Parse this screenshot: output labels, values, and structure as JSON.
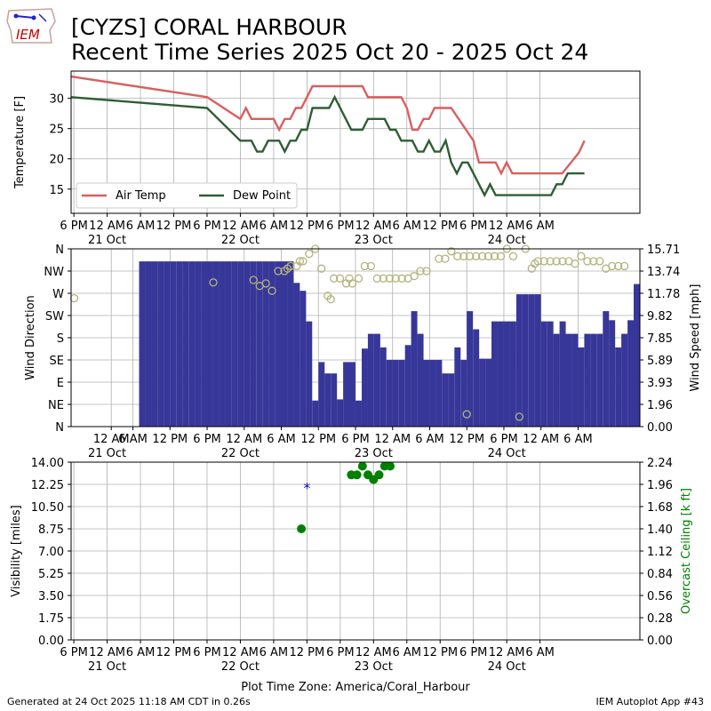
{
  "header": {
    "title_line1": "[CYZS] CORAL HARBOUR",
    "title_line2": "Recent Time Series 2025 Oct 20 - 2025 Oct 24",
    "logo_text": "IEM"
  },
  "footer": {
    "left": "Generated at 24 Oct 2025 11:18 AM CDT in 0.26s",
    "right": "IEM Autoplot App #43"
  },
  "xaxis": {
    "label": "Plot Time Zone: America/Coral_Harbour",
    "range_hours": [
      -6.5,
      96
    ],
    "date_labels": [
      {
        "hour": 0,
        "text": "21 Oct"
      },
      {
        "hour": 24,
        "text": "22 Oct"
      },
      {
        "hour": 48,
        "text": "23 Oct"
      },
      {
        "hour": 72,
        "text": "24 Oct"
      }
    ],
    "ticks_standard": [
      {
        "hour": -6,
        "text": "6 PM"
      },
      {
        "hour": 0,
        "text": "12 AM"
      },
      {
        "hour": 6,
        "text": "6 AM"
      },
      {
        "hour": 12,
        "text": "12 PM"
      },
      {
        "hour": 18,
        "text": "6 PM"
      },
      {
        "hour": 24,
        "text": "12 AM"
      },
      {
        "hour": 30,
        "text": "6 AM"
      },
      {
        "hour": 36,
        "text": "12 PM"
      },
      {
        "hour": 42,
        "text": "6 PM"
      },
      {
        "hour": 48,
        "text": "12 AM"
      },
      {
        "hour": 54,
        "text": "6 AM"
      },
      {
        "hour": 60,
        "text": "12 PM"
      },
      {
        "hour": 66,
        "text": "6 PM"
      },
      {
        "hour": 72,
        "text": "12 AM"
      },
      {
        "hour": 78,
        "text": "6 AM"
      }
    ],
    "ticks_wind": [
      {
        "hour": 0,
        "text": "12 AM"
      },
      {
        "hour": 3.5,
        "text": "6 AM"
      },
      {
        "hour": 9.5,
        "text": "12 PM"
      },
      {
        "hour": 15.5,
        "text": "6 PM"
      },
      {
        "hour": 21.5,
        "text": "12 AM"
      },
      {
        "hour": 27.5,
        "text": "6 AM"
      },
      {
        "hour": 33.5,
        "text": "12 PM"
      },
      {
        "hour": 39.5,
        "text": "6 PM"
      },
      {
        "hour": 45.5,
        "text": "12 AM"
      },
      {
        "hour": 51.5,
        "text": "6 AM"
      },
      {
        "hour": 57.5,
        "text": "12 PM"
      },
      {
        "hour": 63.5,
        "text": "6 PM"
      },
      {
        "hour": 69.5,
        "text": "12 AM"
      },
      {
        "hour": 75.5,
        "text": "6 AM"
      }
    ]
  },
  "chart_data": [
    {
      "type": "line",
      "ylabel": "Temperature [F]",
      "ylim": [
        11,
        34.5
      ],
      "yticks": [
        15,
        20,
        25,
        30
      ],
      "grid": true,
      "legend_position": "lower-left",
      "series": [
        {
          "name": "Air Temp",
          "color": "#d95f60",
          "points": [
            [
              -6.5,
              33.6
            ],
            [
              18,
              30.2
            ],
            [
              24,
              26.6
            ],
            [
              25,
              28.4
            ],
            [
              26,
              26.6
            ],
            [
              27,
              26.6
            ],
            [
              30,
              26.6
            ],
            [
              31,
              24.8
            ],
            [
              32,
              26.6
            ],
            [
              33,
              26.6
            ],
            [
              34,
              28.4
            ],
            [
              35,
              28.4
            ],
            [
              36,
              30.2
            ],
            [
              37,
              32
            ],
            [
              40,
              32
            ],
            [
              42,
              32
            ],
            [
              46,
              32
            ],
            [
              47,
              30.2
            ],
            [
              53,
              30.2
            ],
            [
              54,
              28.4
            ],
            [
              55,
              24.8
            ],
            [
              56,
              24.8
            ],
            [
              57,
              26.6
            ],
            [
              58,
              26.6
            ],
            [
              59,
              28.4
            ],
            [
              62,
              28.4
            ],
            [
              66,
              23
            ],
            [
              67,
              19.4
            ],
            [
              69,
              19.4
            ],
            [
              70,
              19.4
            ],
            [
              71,
              17.6
            ],
            [
              72,
              19.4
            ],
            [
              73,
              17.6
            ],
            [
              80,
              17.6
            ],
            [
              82,
              17.6
            ],
            [
              85,
              21
            ],
            [
              86,
              23
            ]
          ]
        },
        {
          "name": "Dew Point",
          "color": "#2f5e34",
          "points": [
            [
              -6.5,
              30.2
            ],
            [
              18,
              28.4
            ],
            [
              24,
              23
            ],
            [
              26,
              23
            ],
            [
              27,
              21.2
            ],
            [
              28,
              21.2
            ],
            [
              29,
              23
            ],
            [
              31,
              23
            ],
            [
              32,
              21.2
            ],
            [
              33,
              23
            ],
            [
              34,
              23
            ],
            [
              35,
              24.8
            ],
            [
              36,
              24.8
            ],
            [
              37,
              28.4
            ],
            [
              40,
              28.4
            ],
            [
              41,
              30.2
            ],
            [
              44,
              24.8
            ],
            [
              46,
              24.8
            ],
            [
              47,
              26.6
            ],
            [
              50,
              26.6
            ],
            [
              51,
              24.8
            ],
            [
              52,
              24.8
            ],
            [
              53,
              23
            ],
            [
              55,
              23
            ],
            [
              56,
              21.2
            ],
            [
              57,
              21.2
            ],
            [
              58,
              23
            ],
            [
              59,
              21.2
            ],
            [
              60,
              21.2
            ],
            [
              61,
              23
            ],
            [
              62,
              19.4
            ],
            [
              63,
              17.6
            ],
            [
              64,
              19.4
            ],
            [
              65,
              19.4
            ],
            [
              68,
              14
            ],
            [
              69,
              15.8
            ],
            [
              70,
              14
            ],
            [
              78,
              14
            ],
            [
              80,
              14
            ],
            [
              81,
              15.8
            ],
            [
              82,
              15.8
            ],
            [
              83,
              17.6
            ],
            [
              86,
              17.6
            ]
          ]
        }
      ]
    },
    {
      "type": "bar",
      "ylabel": "Wind Direction",
      "y2label": "Wind Speed [mph]",
      "xlim": [
        -6.5,
        85.5
      ],
      "direction_ticks": [
        "N",
        "NE",
        "E",
        "SE",
        "S",
        "SW",
        "W",
        "NW",
        "N"
      ],
      "speed_ticks": [
        "0.00",
        "1.96",
        "3.93",
        "5.89",
        "7.85",
        "9.82",
        "11.78",
        "13.74",
        "15.71"
      ],
      "speed_ylim": [
        0,
        15.71
      ],
      "bar_color": "#373799",
      "marker_color": "#b4b47d",
      "grid": true,
      "speed_bars": [
        [
          5,
          14.6
        ],
        [
          6,
          14.6
        ],
        [
          7,
          14.6
        ],
        [
          8,
          14.6
        ],
        [
          9,
          14.6
        ],
        [
          10,
          14.6
        ],
        [
          11,
          14.6
        ],
        [
          12,
          14.6
        ],
        [
          13,
          14.6
        ],
        [
          14,
          14.6
        ],
        [
          15,
          14.6
        ],
        [
          16,
          14.6
        ],
        [
          17,
          14.6
        ],
        [
          18,
          14.6
        ],
        [
          19,
          14.6
        ],
        [
          20,
          14.6
        ],
        [
          21,
          14.6
        ],
        [
          22,
          14.6
        ],
        [
          23,
          14.6
        ],
        [
          24,
          14.6
        ],
        [
          25,
          14.6
        ],
        [
          26,
          14.6
        ],
        [
          27,
          14.6
        ],
        [
          28,
          14.6
        ],
        [
          29,
          14.6
        ],
        [
          30,
          12.7
        ],
        [
          31,
          12
        ],
        [
          32,
          9.3
        ],
        [
          33,
          2.3
        ],
        [
          34,
          5.7
        ],
        [
          35,
          4.7
        ],
        [
          36,
          4.7
        ],
        [
          37,
          2.4
        ],
        [
          38,
          5.7
        ],
        [
          39,
          5.7
        ],
        [
          40,
          2.3
        ],
        [
          41,
          6.9
        ],
        [
          42,
          8.2
        ],
        [
          43,
          8.2
        ],
        [
          44,
          7
        ],
        [
          45,
          5.9
        ],
        [
          46,
          5.9
        ],
        [
          47,
          5.9
        ],
        [
          48,
          7.2
        ],
        [
          49,
          10.2
        ],
        [
          50,
          8.2
        ],
        [
          51,
          5.9
        ],
        [
          52,
          5.9
        ],
        [
          53,
          5.9
        ],
        [
          54,
          4.7
        ],
        [
          55,
          4.7
        ],
        [
          56,
          7
        ],
        [
          57,
          5.9
        ],
        [
          58,
          10.2
        ],
        [
          59,
          8.6
        ],
        [
          60,
          6
        ],
        [
          61,
          6
        ],
        [
          62,
          9.3
        ],
        [
          63,
          9.3
        ],
        [
          64,
          9.3
        ],
        [
          65,
          9.3
        ],
        [
          66,
          11.7
        ],
        [
          67,
          11.7
        ],
        [
          68,
          11.7
        ],
        [
          69,
          11.7
        ],
        [
          70,
          9.3
        ],
        [
          71,
          9.3
        ],
        [
          72,
          8.2
        ],
        [
          73,
          9.3
        ],
        [
          74,
          8.2
        ],
        [
          75,
          8.2
        ],
        [
          76,
          7
        ],
        [
          77,
          8.2
        ],
        [
          78,
          8.2
        ],
        [
          79,
          8.2
        ],
        [
          80,
          10.2
        ],
        [
          81,
          9.4
        ],
        [
          82,
          7
        ],
        [
          83,
          8.2
        ],
        [
          84,
          9.4
        ],
        [
          85,
          12.6
        ]
      ],
      "direction_points": [
        [
          -6,
          260
        ],
        [
          16.5,
          292
        ],
        [
          23,
          297
        ],
        [
          24,
          285
        ],
        [
          25,
          290
        ],
        [
          26,
          275
        ],
        [
          27,
          315
        ],
        [
          28,
          315
        ],
        [
          28.5,
          320
        ],
        [
          29,
          325
        ],
        [
          30,
          325
        ],
        [
          30.5,
          335
        ],
        [
          31,
          335
        ],
        [
          32,
          350
        ],
        [
          33,
          360
        ],
        [
          34,
          320
        ],
        [
          35,
          265
        ],
        [
          35.5,
          258
        ],
        [
          36,
          300
        ],
        [
          37,
          300
        ],
        [
          38,
          290
        ],
        [
          38.5,
          300
        ],
        [
          39,
          290
        ],
        [
          40,
          300
        ],
        [
          41,
          325
        ],
        [
          42,
          325
        ],
        [
          43,
          300
        ],
        [
          44,
          300
        ],
        [
          45,
          300
        ],
        [
          46,
          300
        ],
        [
          47,
          300
        ],
        [
          48,
          300
        ],
        [
          49,
          305
        ],
        [
          50,
          315
        ],
        [
          51,
          315
        ],
        [
          53,
          340
        ],
        [
          54,
          340
        ],
        [
          55,
          355
        ],
        [
          56,
          345
        ],
        [
          57,
          345
        ],
        [
          57.5,
          25
        ],
        [
          58,
          345
        ],
        [
          59,
          345
        ],
        [
          60,
          345
        ],
        [
          61,
          345
        ],
        [
          62,
          345
        ],
        [
          63,
          345
        ],
        [
          64,
          360
        ],
        [
          65,
          345
        ],
        [
          66,
          20
        ],
        [
          67,
          360
        ],
        [
          68,
          320
        ],
        [
          68.5,
          330
        ],
        [
          69,
          335
        ],
        [
          70,
          335
        ],
        [
          71,
          335
        ],
        [
          72,
          335
        ],
        [
          73,
          335
        ],
        [
          74,
          335
        ],
        [
          75,
          330
        ],
        [
          76,
          345
        ],
        [
          77,
          335
        ],
        [
          78,
          335
        ],
        [
          79,
          335
        ],
        [
          80,
          320
        ],
        [
          81,
          325
        ],
        [
          82,
          325
        ],
        [
          83,
          325
        ]
      ]
    },
    {
      "type": "scatter",
      "ylabel": "Visibility [miles]",
      "y2label": "Overcast Ceiling [k ft]",
      "y2label_color": "#008000",
      "ylim": [
        0,
        14
      ],
      "yticks": [
        "0.00",
        "1.75",
        "3.50",
        "5.25",
        "7.00",
        "8.75",
        "10.50",
        "12.25",
        "14.00"
      ],
      "y2ticks": [
        "0.00",
        "0.28",
        "0.56",
        "0.84",
        "1.12",
        "1.40",
        "1.68",
        "1.96",
        "2.24"
      ],
      "ceiling_ylim": [
        0,
        2.24
      ],
      "grid": true,
      "visibility_points": [
        [
          36,
          12
        ]
      ],
      "visibility_color": "#0000cc",
      "ceiling_color": "#008000",
      "ceiling_points": [
        [
          35,
          1.4
        ],
        [
          44,
          2.08
        ],
        [
          45,
          2.08
        ],
        [
          46,
          2.19
        ],
        [
          47,
          2.08
        ],
        [
          48,
          2.02
        ],
        [
          49,
          2.08
        ],
        [
          50,
          2.19
        ],
        [
          51,
          2.19
        ]
      ]
    }
  ]
}
